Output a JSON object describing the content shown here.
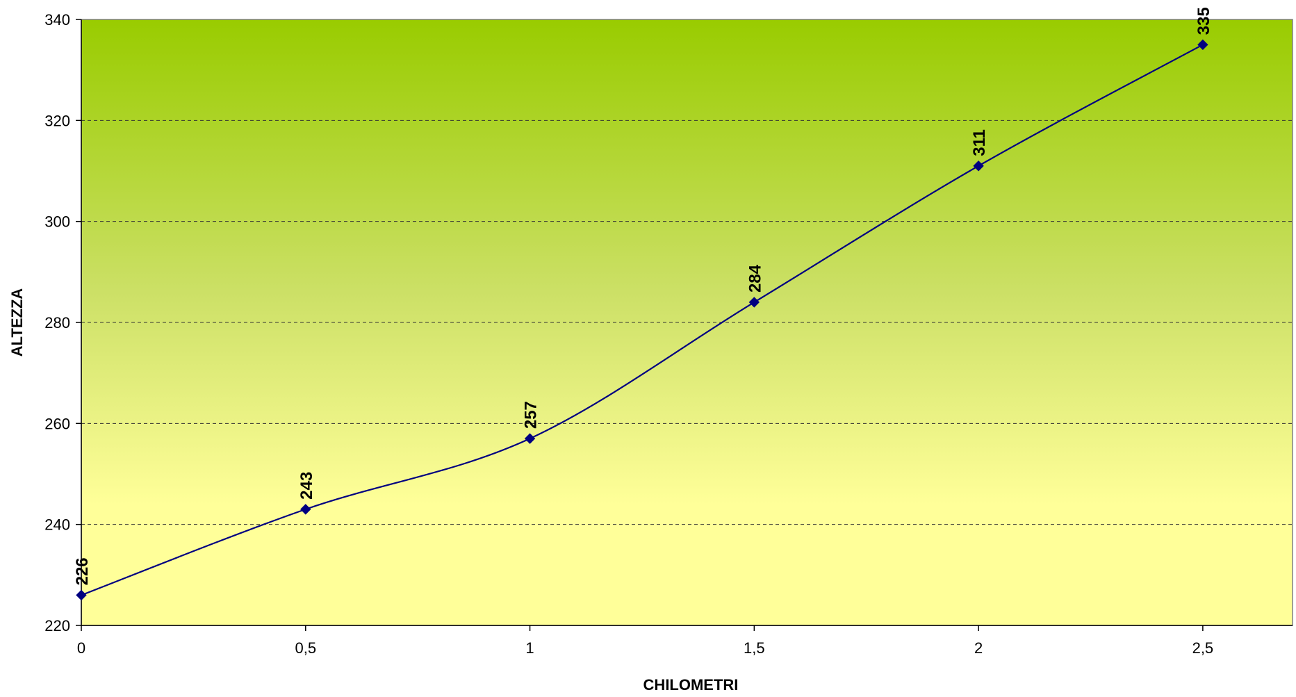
{
  "chart_data": {
    "type": "line",
    "smooth": true,
    "title": "",
    "xlabel": "CHILOMETRI",
    "ylabel": "ALTEZZA",
    "x": [
      0,
      0.5,
      1,
      1.5,
      2,
      2.5
    ],
    "x_tick_labels": [
      "0",
      "0,5",
      "1",
      "1,5",
      "2",
      "2,5"
    ],
    "xlim": [
      0,
      2.7
    ],
    "ylim": [
      220,
      340
    ],
    "y_ticks": [
      220,
      240,
      260,
      280,
      300,
      320,
      340
    ],
    "y_tick_labels": [
      "220",
      "240",
      "260",
      "280",
      "300",
      "320",
      "340"
    ],
    "series": [
      {
        "values": [
          226,
          243,
          257,
          284,
          311,
          335
        ],
        "color": "#000080",
        "marker": "diamond"
      }
    ],
    "data_labels": [
      "226",
      "243",
      "257",
      "284",
      "311",
      "335"
    ],
    "data_label_rotation": "vertical",
    "grid": {
      "horizontal": true,
      "style": "dashed"
    },
    "legend": "none",
    "background_gradient": {
      "top": "#99cc00",
      "bottom": "#ffff99"
    }
  }
}
